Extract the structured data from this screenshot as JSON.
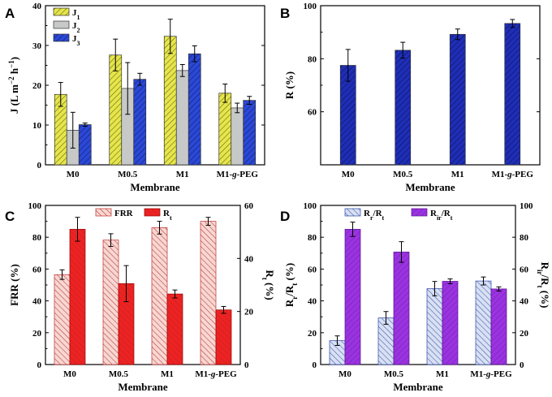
{
  "chart_data": [
    {
      "type": "bar",
      "panel": "A",
      "categories": [
        "M0",
        "M0.5",
        "M1",
        "M1-g-PEG"
      ],
      "categories_rich": [
        [
          "M0"
        ],
        [
          "M0.5"
        ],
        [
          "M1"
        ],
        [
          "M1-",
          "g",
          "-PEG"
        ]
      ],
      "xlabel": "Membrane",
      "ylabel": "J (L m−2 h−1)",
      "ylim": [
        0,
        40
      ],
      "yticks": [
        0,
        10,
        20,
        30,
        40
      ],
      "ytick_labels": [
        "0",
        "10",
        "20",
        "30",
        "40"
      ],
      "series": [
        {
          "name": "J1",
          "base": "J",
          "sub": "1",
          "color": "#e6e64a",
          "hatch": "diag",
          "values": [
            17.7,
            27.6,
            32.3,
            18.0
          ],
          "errors": [
            3.0,
            4.0,
            4.3,
            2.3
          ]
        },
        {
          "name": "J2",
          "base": "J",
          "sub": "2",
          "color": "#c6c9c8",
          "hatch": "none",
          "values": [
            8.7,
            19.2,
            23.7,
            14.3
          ],
          "errors": [
            4.5,
            6.5,
            1.5,
            1.2
          ]
        },
        {
          "name": "J3",
          "base": "J",
          "sub": "3",
          "color": "#2b48d8",
          "hatch": "diag",
          "values": [
            10.1,
            21.5,
            27.9,
            16.2
          ],
          "errors": [
            0.4,
            1.5,
            2.0,
            1.0
          ]
        }
      ]
    },
    {
      "type": "bar",
      "panel": "B",
      "categories": [
        "M0",
        "M0.5",
        "M1",
        "M1-g-PEG"
      ],
      "categories_rich": [
        [
          "M0"
        ],
        [
          "M0.5"
        ],
        [
          "M1"
        ],
        [
          "M1-",
          "g",
          "-PEG"
        ]
      ],
      "xlabel": "Membrane",
      "ylabel": "R (%)",
      "ylim": [
        40,
        100
      ],
      "yticks": [
        60,
        80,
        100
      ],
      "ytick_labels": [
        "60",
        "80",
        "100"
      ],
      "series": [
        {
          "name": "R",
          "color": "#1f2eb8",
          "hatch": "diag",
          "values": [
            77.5,
            83.2,
            89.2,
            93.3
          ],
          "errors": [
            6.0,
            3.0,
            2.0,
            1.5
          ]
        }
      ]
    },
    {
      "type": "bar",
      "panel": "C",
      "categories": [
        "M0",
        "M0.5",
        "M1",
        "M1-g-PEG"
      ],
      "categories_rich": [
        [
          "M0"
        ],
        [
          "M0.5"
        ],
        [
          "M1"
        ],
        [
          "M1-",
          "g",
          "-PEG"
        ]
      ],
      "xlabel": "Membrane",
      "ylabel": "FRR (%)",
      "ylabel_right": "Rt (%)",
      "ylim": [
        0,
        100
      ],
      "yticks": [
        0,
        20,
        40,
        60,
        80,
        100
      ],
      "ytick_labels": [
        "0",
        "20",
        "40",
        "60",
        "80",
        "100"
      ],
      "ylim_right": [
        0,
        60
      ],
      "yticks_right": [
        0,
        20,
        40,
        60
      ],
      "ytick_labels_right": [
        "0",
        "20",
        "40",
        "60"
      ],
      "series": [
        {
          "name": "FRR",
          "base": "FRR",
          "sub": "",
          "color": "#f7d7d2",
          "stroke": "#c03030",
          "hatch": "diag",
          "axis": "left",
          "values": [
            56.5,
            78.2,
            86.0,
            90.0
          ],
          "errors": [
            3.0,
            4.0,
            4.0,
            2.5
          ]
        },
        {
          "name": "Rt",
          "base": "R",
          "sub": "t",
          "color": "#ee2222",
          "stroke": "#990000",
          "hatch": "diag",
          "axis": "right",
          "values": [
            51.0,
            30.5,
            26.6,
            20.6
          ],
          "errors": [
            4.5,
            6.8,
            1.5,
            1.3
          ]
        }
      ]
    },
    {
      "type": "bar",
      "panel": "D",
      "categories": [
        "M0",
        "M0.5",
        "M1",
        "M1-g-PEG"
      ],
      "categories_rich": [
        [
          "M0"
        ],
        [
          "M0.5"
        ],
        [
          "M1"
        ],
        [
          "M1-",
          "g",
          "-PEG"
        ]
      ],
      "xlabel": "Membrane",
      "ylabel": "Rr/Rt (%)",
      "ylabel_right": "Rir/Rt (%)",
      "ylim": [
        0,
        100
      ],
      "yticks": [
        0,
        20,
        40,
        60,
        80,
        100
      ],
      "ytick_labels": [
        "0",
        "20",
        "40",
        "60",
        "80",
        "100"
      ],
      "ylim_right": [
        0,
        100
      ],
      "yticks_right": [
        0,
        20,
        40,
        60,
        80,
        100
      ],
      "ytick_labels_right": [
        "0",
        "20",
        "40",
        "60",
        "80",
        "100"
      ],
      "series": [
        {
          "name": "Rr/Rt",
          "base": "R",
          "sub": "r",
          "tail": "/R",
          "sub2": "t",
          "color": "#d8e0f2",
          "stroke": "#2b48a8",
          "hatch": "diag",
          "axis": "left",
          "values": [
            15.0,
            29.3,
            47.7,
            52.5
          ],
          "errors": [
            3.0,
            4.0,
            4.5,
            2.5
          ]
        },
        {
          "name": "Rir/Rt",
          "base": "R",
          "sub": "ir",
          "tail": "/R",
          "sub2": "t",
          "color": "#9a33e0",
          "stroke": "#5a1090",
          "hatch": "diag",
          "axis": "right",
          "values": [
            85.0,
            70.7,
            52.3,
            47.5
          ],
          "errors": [
            4.5,
            6.5,
            1.5,
            1.3
          ]
        }
      ]
    }
  ],
  "labels": {
    "panel_a": "A",
    "panel_b": "B",
    "panel_c": "C",
    "panel_d": "D"
  }
}
